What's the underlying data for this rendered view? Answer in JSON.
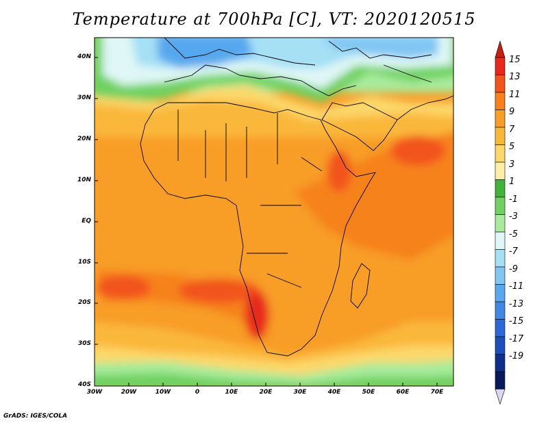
{
  "title": "Temperature at 700hPa [C], VT: 2020120515",
  "credit": "GrADS: IGES/COLA",
  "map": {
    "lat_ticks": [
      "40N",
      "30N",
      "20N",
      "10N",
      "EQ",
      "10S",
      "20S",
      "30S",
      "40S"
    ],
    "lon_ticks": [
      "30W",
      "20W",
      "10W",
      "0",
      "10E",
      "20E",
      "30E",
      "40E",
      "50E",
      "60E",
      "70E"
    ]
  },
  "colorbar": {
    "labels": [
      "15",
      "13",
      "11",
      "9",
      "7",
      "5",
      "3",
      "1",
      "-1",
      "-3",
      "-5",
      "-7",
      "-9",
      "-11",
      "-13",
      "-15",
      "-17",
      "-19"
    ],
    "colors": [
      "#e8291a",
      "#f2541c",
      "#f6821e",
      "#f89d28",
      "#fab83a",
      "#fcd86a",
      "#fdf0a6",
      "#3fb33a",
      "#6fd160",
      "#a7eb9b",
      "#dff7f6",
      "#a5e0f5",
      "#7fc6f3",
      "#57a8ee",
      "#3d89e4",
      "#2a69d6",
      "#1b4fbc",
      "#0e2f8c",
      "#081a5c"
    ],
    "top_arrow": "#c81e10",
    "bottom_arrow": "#d9d9f5"
  }
}
